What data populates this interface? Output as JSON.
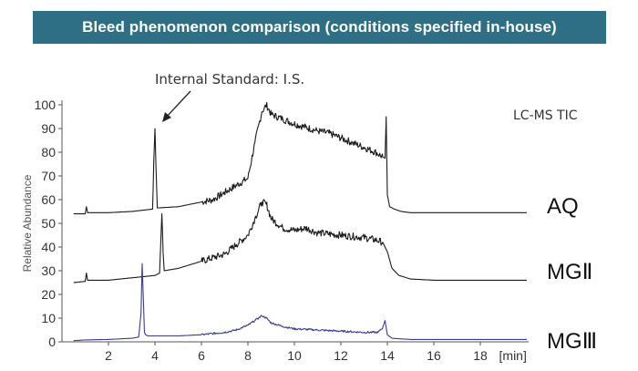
{
  "header": {
    "title": "Bleed phenomenon comparison (conditions specified in-house)",
    "title_bg_color": "#2e6f85",
    "title_text_color": "#ffffff"
  },
  "chart_data": {
    "type": "line",
    "title": "Bleed phenomenon comparison (conditions specified in-house)",
    "ylabel": "Relative Abundance",
    "x_unit_label": "[min]",
    "xlim": [
      0,
      20
    ],
    "ylim": [
      0,
      100
    ],
    "x_ticks": [
      2,
      4,
      6,
      8,
      10,
      12,
      14,
      16,
      18
    ],
    "y_ticks": [
      0,
      10,
      20,
      30,
      40,
      50,
      60,
      70,
      80,
      90,
      100
    ],
    "grid": false,
    "annotations": {
      "internal_standard": "Internal Standard: I.S.",
      "detector": "LC-MS TIC"
    },
    "series": [
      {
        "name": "AQ",
        "color": "#1a1a1a",
        "x": [
          0.5,
          1.0,
          1.05,
          1.1,
          2.0,
          3.0,
          3.9,
          3.95,
          4.0,
          4.05,
          4.1,
          5.0,
          6.0,
          6.5,
          7.0,
          7.5,
          8.0,
          8.3,
          8.6,
          8.8,
          9.0,
          9.5,
          10.0,
          10.5,
          11.0,
          11.5,
          12.0,
          12.5,
          13.0,
          13.5,
          13.8,
          13.9,
          13.95,
          14.0,
          14.1,
          14.3,
          14.6,
          15.0,
          16.0,
          17.0,
          18.0,
          19.0,
          20.0
        ],
        "y": [
          54,
          54,
          57,
          54.5,
          54.5,
          55,
          56,
          76,
          90,
          72,
          56.5,
          57,
          59,
          60,
          63,
          66,
          69,
          84,
          97,
          100,
          96,
          94,
          92,
          90.5,
          89,
          88,
          86,
          84,
          82,
          80,
          78,
          77.5,
          95,
          62,
          57,
          56,
          55,
          54.5,
          54.5,
          54.5,
          54.5,
          54.5,
          54.5
        ]
      },
      {
        "name": "MGⅡ",
        "color": "#1a1a1a",
        "x": [
          0.5,
          1.0,
          1.05,
          1.1,
          2.0,
          3.0,
          4.0,
          4.2,
          4.25,
          4.3,
          4.35,
          4.4,
          5.0,
          6.0,
          7.0,
          7.5,
          8.0,
          8.3,
          8.6,
          8.8,
          9.0,
          9.5,
          10.0,
          10.5,
          11.0,
          12.0,
          13.0,
          13.5,
          13.8,
          14.0,
          14.2,
          14.5,
          15.0,
          16.0,
          17.0,
          18.0,
          19.0,
          20.0
        ],
        "y": [
          25,
          25.5,
          29,
          26,
          26,
          27,
          28,
          29,
          42,
          54,
          38,
          30,
          31,
          34,
          37,
          41,
          45,
          52,
          59,
          58,
          52,
          48,
          47,
          48,
          46,
          45,
          44,
          43,
          42,
          38,
          31,
          28,
          26.5,
          26,
          26,
          26,
          26,
          26
        ]
      },
      {
        "name": "MGⅢ",
        "color": "#3b3b8e",
        "x": [
          0.5,
          1.0,
          2.0,
          3.0,
          3.3,
          3.4,
          3.45,
          3.5,
          3.55,
          3.6,
          3.7,
          4.0,
          5.0,
          6.0,
          7.0,
          7.5,
          8.0,
          8.3,
          8.6,
          8.8,
          9.0,
          9.5,
          10.0,
          11.0,
          12.0,
          13.0,
          13.6,
          13.8,
          13.9,
          14.0,
          14.2,
          15.0,
          16.0,
          17.0,
          18.0,
          19.0,
          20.0
        ],
        "y": [
          0.5,
          0.8,
          1,
          1.5,
          2,
          12,
          33,
          18,
          4,
          3,
          2.5,
          2.5,
          2.5,
          3,
          4,
          5,
          7,
          9,
          11,
          10,
          8,
          6.5,
          5.5,
          5,
          4.5,
          4,
          4,
          6,
          9,
          3,
          1.5,
          1,
          1,
          1,
          1,
          1,
          1
        ]
      }
    ]
  }
}
